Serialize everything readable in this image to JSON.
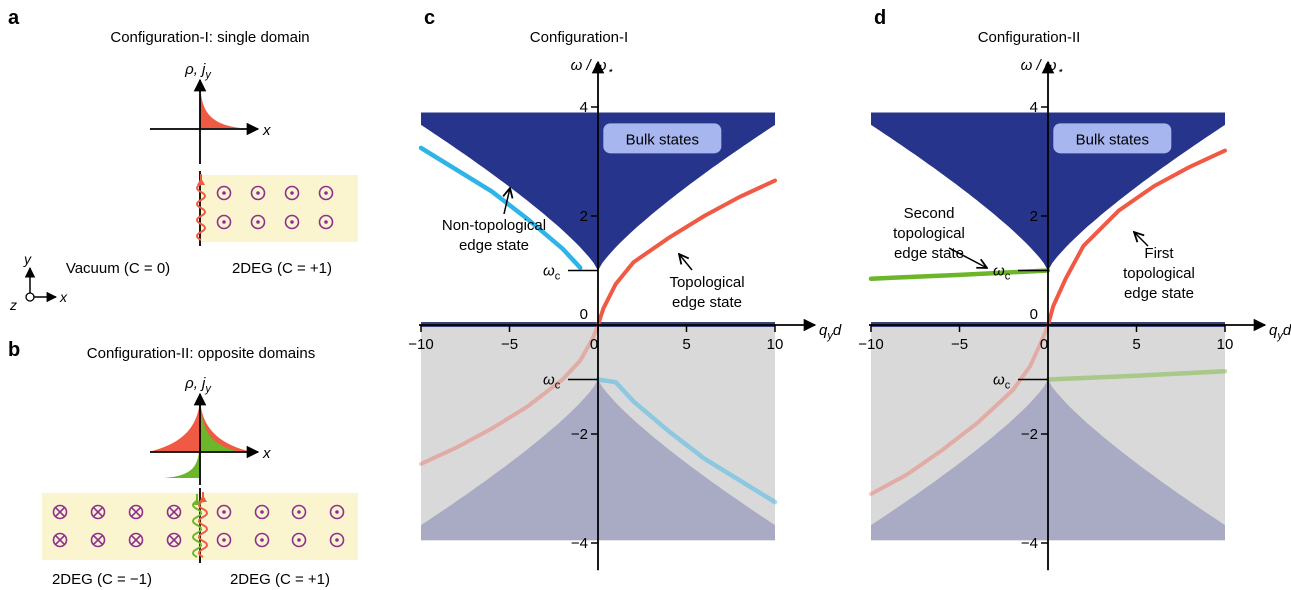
{
  "panel_a": {
    "letter": "a",
    "title": "Configuration-I: single domain",
    "profile_axis_label": "ρ, j",
    "profile_axis_sub": "y",
    "x_label": "x",
    "left_label": "Vacuum (C = 0)",
    "right_label": "2DEG (C = +1)",
    "coord_y": "y",
    "coord_x": "x",
    "coord_z": "z"
  },
  "panel_b": {
    "letter": "b",
    "title": "Configuration-II: opposite domains",
    "profile_axis_label": "ρ, j",
    "profile_axis_sub": "y",
    "x_label": "x",
    "left_label": "2DEG (C = −1)",
    "right_label": "2DEG (C = +1)"
  },
  "colors": {
    "bulk": "#27348b",
    "bulk_light": "#a9aac3",
    "gap_grey": "#d9d9d9",
    "topological": "#f05a45",
    "nontopological": "#2eb4e6",
    "second": "#6db529",
    "sample": "#fbf5cf",
    "field": "#8e2f8f",
    "bulk_label_bg": "#a8b6f0"
  },
  "chart_data": [
    {
      "type": "line",
      "letter": "c",
      "title": "Configuration-I",
      "xlabel": "q",
      "xlabel_sub": "y",
      "xlabel_tail": "d",
      "ylabel": "ω / ω",
      "ylabel_sub": "⋆",
      "xlim": [
        -10,
        10
      ],
      "ylim": [
        -4.5,
        4.5
      ],
      "xticks": [
        -10,
        -5,
        0,
        5,
        10
      ],
      "yticks": [
        -4,
        -2,
        2,
        4
      ],
      "xtick_labels": [
        "−10",
        "−5",
        "0",
        "5",
        "10"
      ],
      "ytick_labels": [
        "−4",
        "−2",
        "2",
        "4"
      ],
      "omega_c": 1.0,
      "omega_c_label": "ω",
      "omega_c_sub": "c",
      "bulk_label": "Bulk states",
      "annotations": [
        "Non-topological",
        "edge state",
        "Topological",
        "edge state"
      ],
      "series": [
        {
          "name": "Topological edge state",
          "color": "topological",
          "x": [
            -10,
            -8,
            -6,
            -4,
            -2,
            -1,
            -0.3,
            0,
            0.3,
            1,
            2,
            4,
            6,
            8,
            10
          ],
          "y": [
            -2.55,
            -2.25,
            -1.9,
            -1.5,
            -1.0,
            -0.65,
            -0.25,
            0,
            0.3,
            0.75,
            1.15,
            1.6,
            2.0,
            2.35,
            2.65
          ]
        },
        {
          "name": "Non-topological edge state",
          "color": "nontopological",
          "x": [
            -10,
            -8,
            -6,
            -4,
            -2,
            -1
          ],
          "y": [
            3.25,
            2.85,
            2.45,
            1.95,
            1.4,
            1.05
          ]
        },
        {
          "name": "Non-topological edge state (negative)",
          "color": "nontopological",
          "x": [
            0,
            1,
            2,
            4,
            6,
            8,
            10
          ],
          "y": [
            -1.0,
            -1.05,
            -1.4,
            -1.95,
            -2.45,
            -2.85,
            -3.25
          ]
        }
      ]
    },
    {
      "type": "line",
      "letter": "d",
      "title": "Configuration-II",
      "xlabel": "q",
      "xlabel_sub": "y",
      "xlabel_tail": "d",
      "ylabel": "ω / ω",
      "ylabel_sub": "⋆",
      "xlim": [
        -10,
        10
      ],
      "ylim": [
        -4.5,
        4.5
      ],
      "xticks": [
        -10,
        -5,
        0,
        5,
        10
      ],
      "yticks": [
        -4,
        -2,
        2,
        4
      ],
      "xtick_labels": [
        "−10",
        "−5",
        "0",
        "5",
        "10"
      ],
      "ytick_labels": [
        "−4",
        "−2",
        "2",
        "4"
      ],
      "omega_c": 1.0,
      "omega_c_label": "ω",
      "omega_c_sub": "c",
      "bulk_label": "Bulk states",
      "annotations": [
        "Second",
        "topological",
        "edge state",
        "First",
        "topological",
        "edge state"
      ],
      "series": [
        {
          "name": "First topological edge state",
          "color": "topological",
          "x": [
            -10,
            -8,
            -6,
            -4,
            -2,
            -1,
            -0.3,
            0,
            0.3,
            1,
            2,
            4,
            6,
            8,
            10
          ],
          "y": [
            -3.1,
            -2.75,
            -2.3,
            -1.8,
            -1.2,
            -0.75,
            -0.25,
            0,
            0.35,
            0.85,
            1.45,
            2.1,
            2.55,
            2.9,
            3.2
          ]
        },
        {
          "name": "Second topological edge state",
          "color": "second",
          "x": [
            -10,
            -5,
            0
          ],
          "y": [
            0.85,
            0.92,
            1.0
          ]
        },
        {
          "name": "Second topological edge state (negative)",
          "color": "second",
          "x": [
            0,
            5,
            10
          ],
          "y": [
            -1.0,
            -0.93,
            -0.85
          ]
        }
      ]
    }
  ]
}
